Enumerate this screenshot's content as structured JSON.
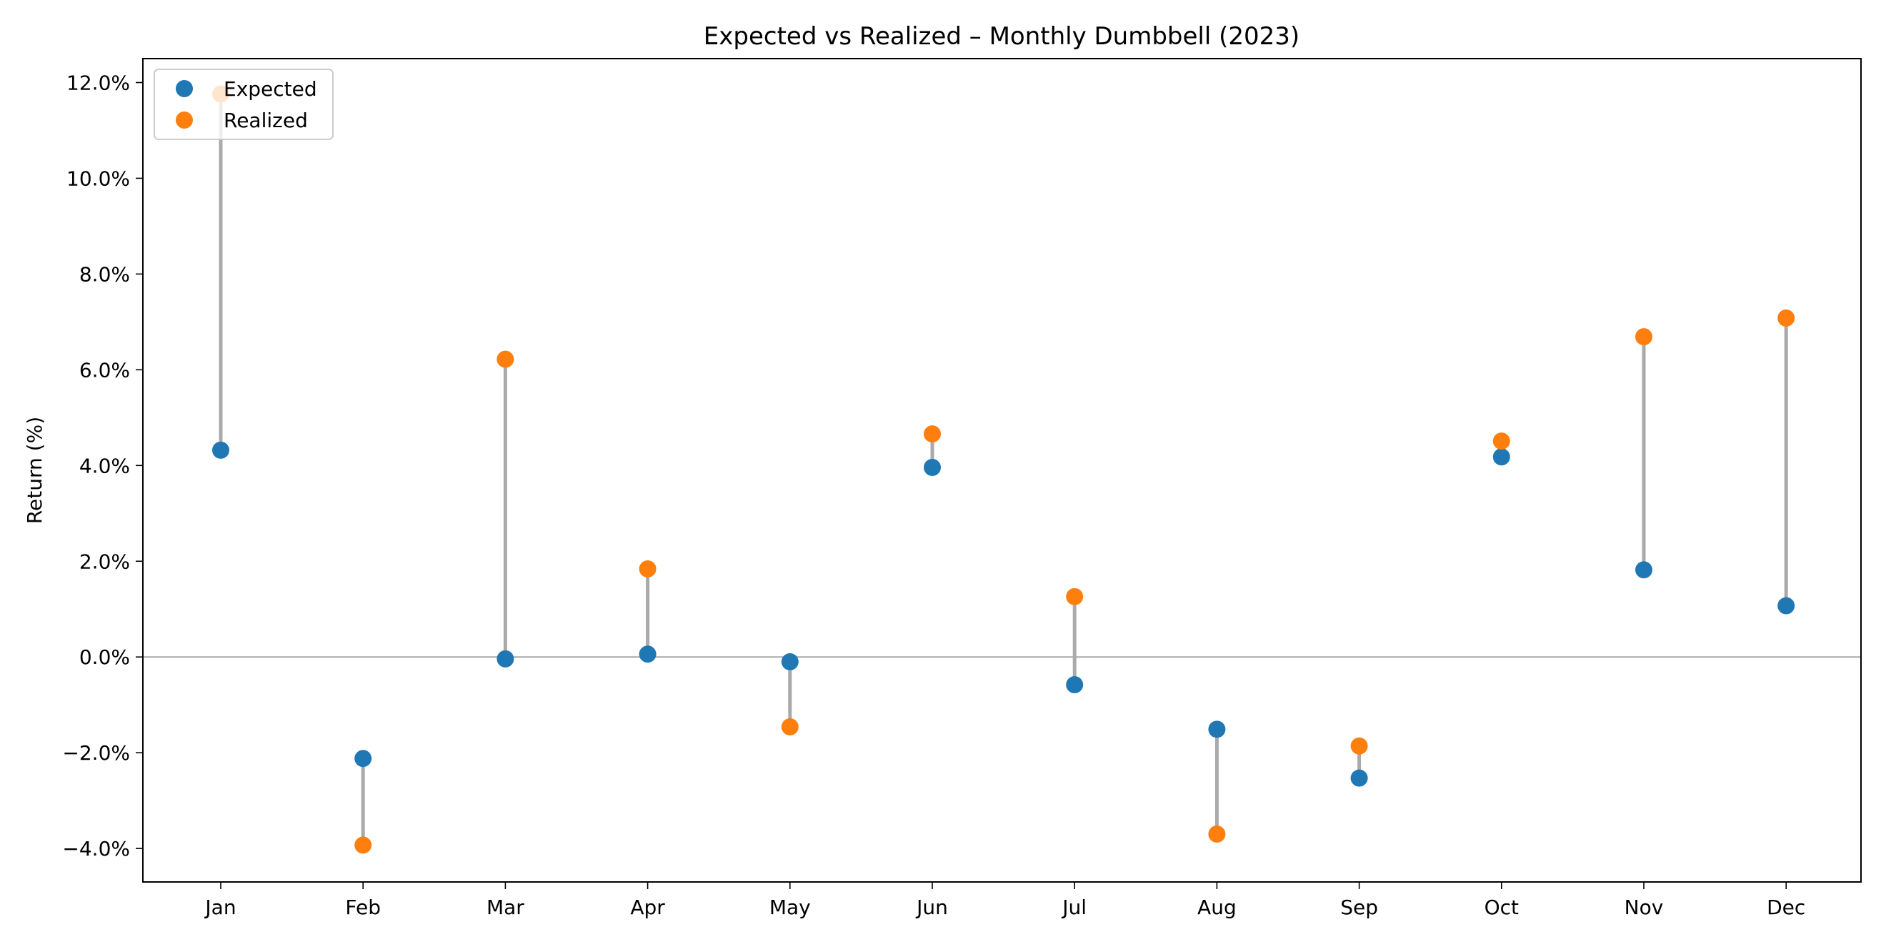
{
  "chart_data": {
    "type": "dumbbell",
    "title": "Expected vs Realized – Monthly Dumbbell (2023)",
    "xlabel": "",
    "ylabel": "Return (%)",
    "categories": [
      "Jan",
      "Feb",
      "Mar",
      "Apr",
      "May",
      "Jun",
      "Jul",
      "Aug",
      "Sep",
      "Oct",
      "Nov",
      "Dec"
    ],
    "series": [
      {
        "name": "Expected",
        "color": "#1f77b4",
        "values": [
          4.32,
          -2.12,
          -0.04,
          0.06,
          -0.1,
          3.96,
          -0.58,
          -1.51,
          -2.53,
          4.18,
          1.82,
          1.07
        ]
      },
      {
        "name": "Realized",
        "color": "#ff7f0e",
        "values": [
          11.76,
          -3.93,
          6.22,
          1.84,
          -1.46,
          4.66,
          1.26,
          -3.7,
          -1.86,
          4.51,
          6.69,
          7.08
        ]
      }
    ],
    "connector_color": "#aaaaaa",
    "zero_line": 0,
    "ylim": [
      -4.7,
      12.5
    ],
    "yticks": [
      -4,
      -2,
      0,
      2,
      4,
      6,
      8,
      10,
      12
    ],
    "ytick_labels": [
      "−4.0%",
      "−2.0%",
      "0.0%",
      "2.0%",
      "4.0%",
      "6.0%",
      "8.0%",
      "10.0%",
      "12.0%"
    ],
    "grid": false,
    "legend_position": "top-left"
  }
}
